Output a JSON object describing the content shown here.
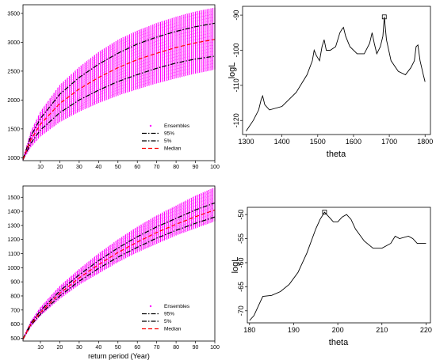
{
  "chart_data": [
    {
      "type": "scatter",
      "title": "",
      "xlabel": "",
      "ylabel": "",
      "xlim": [
        1,
        100
      ],
      "ylim": [
        950,
        3650
      ],
      "xticks": [
        10,
        20,
        30,
        40,
        50,
        60,
        70,
        80,
        90,
        100
      ],
      "yticks": [
        1000,
        1500,
        2000,
        2500,
        3000,
        3500
      ],
      "grid": false,
      "legend_position": "bottom-right",
      "x": [
        1,
        5,
        10,
        20,
        30,
        40,
        50,
        60,
        70,
        80,
        90,
        100
      ],
      "series": [
        {
          "name": "Ensembles",
          "style": "points",
          "color": "#ff00ff",
          "low": [
            960,
            1180,
            1370,
            1620,
            1800,
            1950,
            2080,
            2190,
            2290,
            2380,
            2460,
            2530
          ],
          "high": [
            990,
            1450,
            1800,
            2260,
            2570,
            2830,
            3040,
            3200,
            3330,
            3440,
            3530,
            3600
          ]
        },
        {
          "name": "95%",
          "style": "dashdot",
          "color": "#000000",
          "values": [
            975,
            1370,
            1680,
            2100,
            2390,
            2620,
            2810,
            2970,
            3090,
            3190,
            3270,
            3330
          ]
        },
        {
          "name": "5%",
          "style": "dashdot",
          "color": "#000000",
          "values": [
            965,
            1250,
            1480,
            1780,
            2000,
            2170,
            2320,
            2440,
            2550,
            2640,
            2710,
            2760
          ]
        },
        {
          "name": "Median",
          "style": "dashed",
          "color": "#ff0000",
          "values": [
            970,
            1310,
            1580,
            1940,
            2190,
            2390,
            2560,
            2700,
            2810,
            2910,
            2990,
            3050
          ]
        }
      ]
    },
    {
      "type": "line",
      "title": "",
      "xlabel": "theta",
      "ylabel": "logL",
      "xlim": [
        1290,
        1815
      ],
      "ylim": [
        -124,
        -87.5
      ],
      "xticks": [
        1300,
        1400,
        1500,
        1600,
        1700,
        1800
      ],
      "yticks": [
        -120,
        -110,
        -100,
        -90
      ],
      "grid": false,
      "x": [
        1300,
        1320,
        1335,
        1342,
        1346,
        1352,
        1365,
        1400,
        1440,
        1470,
        1485,
        1490,
        1496,
        1505,
        1512,
        1518,
        1524,
        1535,
        1550,
        1562,
        1568,
        1572,
        1578,
        1590,
        1610,
        1630,
        1645,
        1652,
        1658,
        1665,
        1675,
        1682,
        1686,
        1692,
        1705,
        1725,
        1745,
        1760,
        1770,
        1775,
        1780,
        1786,
        1795,
        1800
      ],
      "values": [
        -123,
        -120,
        -117,
        -114,
        -113,
        -115.5,
        -117,
        -116,
        -112,
        -107,
        -103,
        -100,
        -101.5,
        -103,
        -99,
        -97,
        -100,
        -100,
        -99,
        -95,
        -94,
        -93.5,
        -96,
        -99,
        -101,
        -101,
        -98,
        -95,
        -98,
        -101,
        -99,
        -96,
        -90.5,
        -97,
        -103,
        -106,
        -107,
        -105,
        -103,
        -99,
        -98.5,
        -103,
        -107,
        -109
      ],
      "marker": {
        "x": 1686,
        "y": -90.5,
        "shape": "square"
      }
    },
    {
      "type": "scatter",
      "title": "",
      "xlabel": "return period (Year)",
      "ylabel": "",
      "xlim": [
        1,
        100
      ],
      "ylim": [
        480,
        1580
      ],
      "xticks": [
        10,
        20,
        30,
        40,
        50,
        60,
        70,
        80,
        90,
        100
      ],
      "yticks": [
        500,
        600,
        700,
        800,
        900,
        1000,
        1100,
        1200,
        1300,
        1400,
        1500
      ],
      "grid": false,
      "legend_position": "bottom-right",
      "x": [
        1,
        5,
        10,
        20,
        30,
        40,
        50,
        60,
        70,
        80,
        90,
        100
      ],
      "series": [
        {
          "name": "Ensembles",
          "style": "points",
          "color": "#ff00ff",
          "low": [
            490,
            580,
            660,
            780,
            880,
            960,
            1040,
            1110,
            1170,
            1230,
            1280,
            1330
          ],
          "high": [
            500,
            620,
            720,
            870,
            990,
            1100,
            1200,
            1290,
            1370,
            1440,
            1510,
            1570
          ]
        },
        {
          "name": "95%",
          "style": "dashdot",
          "color": "#000000",
          "values": [
            495,
            605,
            695,
            835,
            950,
            1050,
            1140,
            1220,
            1290,
            1350,
            1410,
            1460
          ]
        },
        {
          "name": "5%",
          "style": "dashdot",
          "color": "#000000",
          "values": [
            492,
            590,
            670,
            800,
            905,
            995,
            1075,
            1145,
            1210,
            1265,
            1315,
            1360
          ]
        },
        {
          "name": "Median",
          "style": "dashed",
          "color": "#ff0000",
          "values": [
            494,
            598,
            682,
            818,
            928,
            1022,
            1108,
            1182,
            1250,
            1308,
            1362,
            1410
          ]
        }
      ]
    },
    {
      "type": "line",
      "title": "",
      "xlabel": "theta",
      "ylabel": "logL",
      "xlim": [
        179.5,
        221
      ],
      "ylim": [
        -72.5,
        -48.5
      ],
      "xticks": [
        180,
        190,
        200,
        210,
        220
      ],
      "yticks": [
        -70,
        -65,
        -60,
        -55,
        -50
      ],
      "grid": false,
      "x": [
        180,
        181,
        182,
        183,
        185,
        187,
        189,
        191,
        193,
        195,
        196,
        197,
        198,
        199,
        200,
        201,
        202,
        203,
        204,
        206,
        208,
        210,
        212,
        213,
        214,
        216,
        217,
        218,
        220
      ],
      "values": [
        -72,
        -71,
        -69,
        -67,
        -66.8,
        -66,
        -64.5,
        -62,
        -58,
        -53,
        -51,
        -49.5,
        -50.5,
        -51.5,
        -51.5,
        -50.5,
        -50,
        -51,
        -53,
        -55.5,
        -57,
        -57,
        -56,
        -54.5,
        -55,
        -54.5,
        -55,
        -56,
        -56
      ],
      "marker": {
        "x": 197,
        "y": -49.5,
        "shape": "square"
      }
    }
  ]
}
